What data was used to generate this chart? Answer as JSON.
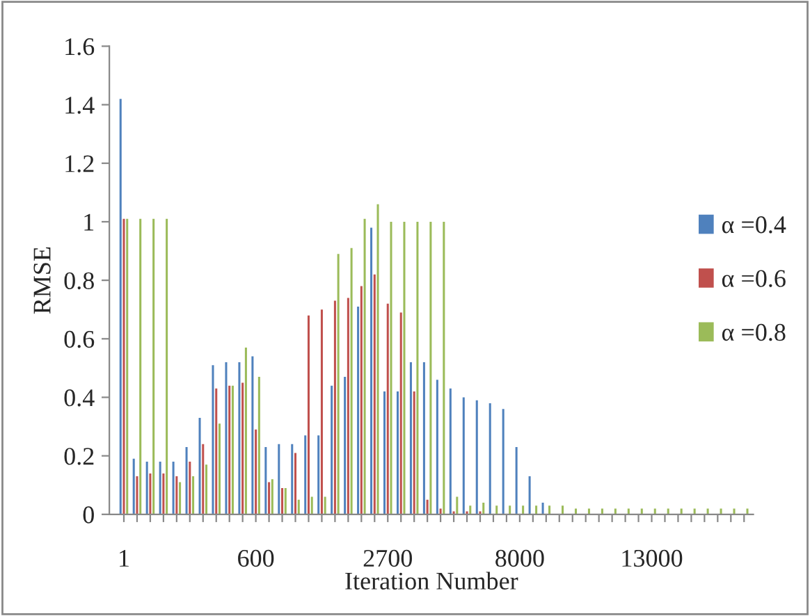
{
  "chart_data": {
    "type": "bar",
    "xlabel": "Iteration Number",
    "ylabel": "RMSE",
    "categories": [
      "1",
      null,
      null,
      null,
      null,
      null,
      null,
      null,
      null,
      null,
      "600",
      null,
      null,
      null,
      null,
      null,
      null,
      null,
      null,
      null,
      "2700",
      null,
      null,
      null,
      null,
      null,
      null,
      null,
      null,
      null,
      "8000",
      null,
      null,
      null,
      null,
      null,
      null,
      null,
      null,
      null,
      "13000",
      null,
      null,
      null,
      null,
      null,
      null,
      null
    ],
    "series": [
      {
        "name": "α =0.4",
        "color": "#4f81bd",
        "values": [
          1.42,
          0.19,
          0.18,
          0.18,
          0.18,
          0.23,
          0.33,
          0.51,
          0.52,
          0.52,
          0.54,
          0.23,
          0.24,
          0.24,
          0.27,
          0.27,
          0.44,
          0.47,
          0.71,
          0.98,
          0.42,
          0.42,
          0.52,
          0.52,
          0.46,
          0.43,
          0.4,
          0.39,
          0.38,
          0.36,
          0.23,
          0.13,
          0.04,
          0,
          0,
          0,
          0,
          0,
          0,
          0,
          0,
          0,
          0,
          0,
          0,
          0,
          0,
          0
        ]
      },
      {
        "name": "α =0.6",
        "color": "#c0504d",
        "values": [
          1.01,
          0.13,
          0.14,
          0.14,
          0.13,
          0.18,
          0.24,
          0.43,
          0.44,
          0.45,
          0.29,
          0.11,
          0.09,
          0.21,
          0.68,
          0.7,
          0.73,
          0.74,
          0.78,
          0.82,
          0.72,
          0.69,
          0.42,
          0.05,
          0.02,
          0.01,
          0.01,
          0.01,
          0,
          0,
          0,
          0,
          0,
          0,
          0,
          0,
          0,
          0,
          0,
          0,
          0,
          0,
          0,
          0,
          0,
          0,
          0,
          0
        ]
      },
      {
        "name": "α =0.8",
        "color": "#9bbb59",
        "values": [
          1.01,
          1.01,
          1.01,
          1.01,
          0.11,
          0.13,
          0.17,
          0.31,
          0.44,
          0.57,
          0.47,
          0.12,
          0.09,
          0.05,
          0.06,
          0.06,
          0.89,
          0.91,
          1.01,
          1.06,
          1.0,
          1.0,
          1.0,
          1.0,
          1.0,
          0.06,
          0.03,
          0.04,
          0.03,
          0.03,
          0.03,
          0.03,
          0.03,
          0.03,
          0.02,
          0.02,
          0.02,
          0.02,
          0.02,
          0.02,
          0.02,
          0.02,
          0.02,
          0.02,
          0.02,
          0.02,
          0.02,
          0.02
        ]
      }
    ],
    "ylim": [
      0,
      1.6
    ],
    "yticks": [
      0,
      {
        "value": 0.2,
        "label": "0.2"
      },
      {
        "value": 0.4,
        "label": "0.4"
      },
      {
        "value": 0.6,
        "label": "0.6"
      },
      {
        "value": 0.8,
        "label": "0.8"
      },
      1,
      {
        "value": 1.2,
        "label": "1.2"
      },
      {
        "value": 1.4,
        "label": "1.4"
      },
      {
        "value": 1.6,
        "label": "1.6"
      }
    ],
    "grid": false,
    "legend": "right"
  }
}
